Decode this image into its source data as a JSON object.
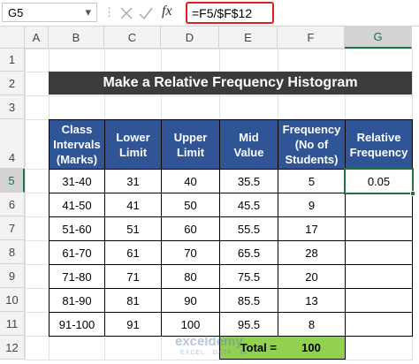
{
  "name_box": "G5",
  "formula_bar": {
    "fx": "fx",
    "formula": "=F5/$F$12"
  },
  "column_headers": [
    "A",
    "B",
    "C",
    "D",
    "E",
    "F",
    "G"
  ],
  "row_headers": [
    "1",
    "2",
    "3",
    "4",
    "5",
    "6",
    "7",
    "8",
    "9",
    "10",
    "11",
    "12"
  ],
  "title": "Make a Relative Frequency Histogram",
  "table": {
    "header": [
      [
        "Class",
        "Intervals",
        "(Marks)"
      ],
      [
        "Lower",
        "Limit"
      ],
      [
        "Upper",
        "Limit"
      ],
      [
        "Mid",
        "Value"
      ],
      [
        "Frequency",
        "(No of",
        "Students)"
      ],
      [
        "Relative",
        "Frequency"
      ]
    ],
    "rows": [
      [
        "31-40",
        31,
        40,
        35.5,
        5,
        0.05
      ],
      [
        "41-50",
        41,
        50,
        45.5,
        9
      ],
      [
        "51-60",
        51,
        60,
        55.5,
        17
      ],
      [
        "61-70",
        61,
        70,
        65.5,
        28
      ],
      [
        "71-80",
        71,
        80,
        75.5,
        20
      ],
      [
        "81-90",
        81,
        90,
        85.5,
        13
      ],
      [
        "91-100",
        91,
        100,
        95.5,
        8
      ]
    ]
  },
  "total": {
    "label": "Total =",
    "value": 100
  },
  "watermark": {
    "name": "exceldemy",
    "tagline": "EXCEL · DATA · BI"
  }
}
